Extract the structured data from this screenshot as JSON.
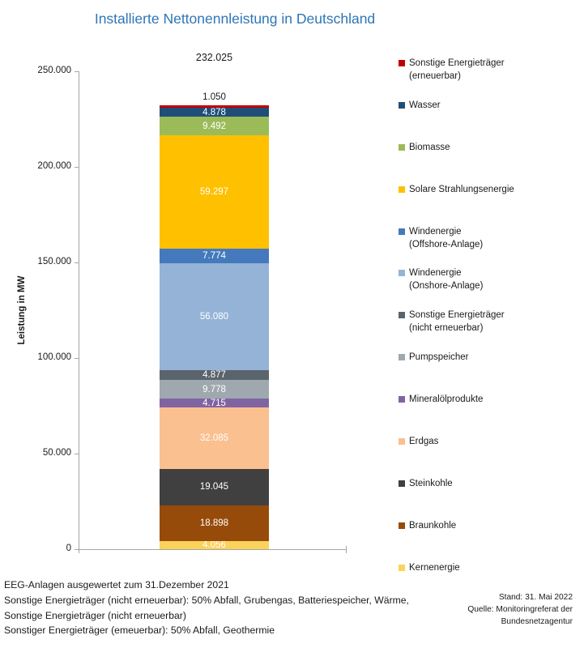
{
  "title": "Installierte Nettonennleistung in Deutschland",
  "chart_data": {
    "type": "bar",
    "stacked": true,
    "title": "Installierte Nettonennleistung in Deutschland",
    "ylabel": "Leistung in MW",
    "ylim": [
      0,
      250000
    ],
    "grid": false,
    "legend_position": "right",
    "total_value": 232025,
    "total_label": "232.025",
    "axis_color": "#A6A6A6",
    "title_color": "#2E75B6",
    "yticks": [
      {
        "value": 250000,
        "label": "250.000"
      },
      {
        "value": 200000,
        "label": "200.000"
      },
      {
        "value": 150000,
        "label": "150.000"
      },
      {
        "value": 100000,
        "label": "100.000"
      },
      {
        "value": 50000,
        "label": "50.000"
      },
      {
        "value": 0,
        "label": "0"
      }
    ],
    "segments": [
      {
        "id": "kernenergie",
        "name": "Kernenergie",
        "value": 4056,
        "label": "4.056",
        "color": "#FBD25A"
      },
      {
        "id": "braunkohle",
        "name": "Braunkohle",
        "value": 18898,
        "label": "18.898",
        "color": "#964B0B"
      },
      {
        "id": "steinkohle",
        "name": "Steinkohle",
        "value": 19045,
        "label": "19.045",
        "color": "#404040"
      },
      {
        "id": "erdgas",
        "name": "Erdgas",
        "value": 32085,
        "label": "32.085",
        "color": "#FAC090"
      },
      {
        "id": "mineraloelprodukte",
        "name": "Mineralölprodukte",
        "value": 4715,
        "label": "4.715",
        "color": "#8064A2"
      },
      {
        "id": "pumpspeicher",
        "name": "Pumpspeicher",
        "value": 9778,
        "label": "9.778",
        "color": "#9EA8AE"
      },
      {
        "id": "sonstige-nicht-erneuerbar",
        "name": "Sonstige Energieträger (nicht erneuerbar)",
        "value": 4877,
        "label": "4.877",
        "color": "#5A646C"
      },
      {
        "id": "wind-onshore",
        "name": "Windenergie (Onshore-Anlage)",
        "value": 56080,
        "label": "56.080",
        "color": "#95B3D7"
      },
      {
        "id": "wind-offshore",
        "name": "Windenergie (Offshore-Anlage)",
        "value": 7774,
        "label": "7.774",
        "color": "#4479BD"
      },
      {
        "id": "solare-strahlungsenergie",
        "name": "Solare Strahlungsenergie",
        "value": 59297,
        "label": "59.297",
        "color": "#FFC000"
      },
      {
        "id": "biomasse",
        "name": "Biomasse",
        "value": 9492,
        "label": "9.492",
        "color": "#9BBB59"
      },
      {
        "id": "wasser",
        "name": "Wasser",
        "value": 4878,
        "label": "4.878",
        "color": "#1F4E79"
      },
      {
        "id": "sonstige-erneuerbar",
        "name": "Sonstige Energieträger (erneuerbar)",
        "value": 1050,
        "label": "1.050",
        "color": "#C00000",
        "label_outside": true
      }
    ],
    "legend": [
      {
        "color": "#C00000",
        "lines": [
          "Sonstige Energieträger",
          "(erneuerbar)"
        ]
      },
      {
        "color": "#1F4E79",
        "lines": [
          "Wasser"
        ]
      },
      {
        "color": "#9BBB59",
        "lines": [
          "Biomasse"
        ]
      },
      {
        "color": "#FFC000",
        "lines": [
          "Solare Strahlungsenergie"
        ]
      },
      {
        "color": "#4479BD",
        "lines": [
          "Windenergie",
          "(Offshore-Anlage)"
        ]
      },
      {
        "color": "#95B3D7",
        "lines": [
          "Windenergie",
          "(Onshore-Anlage)"
        ]
      },
      {
        "color": "#5A646C",
        "lines": [
          "Sonstige Energieträger",
          "(nicht erneuerbar)"
        ]
      },
      {
        "color": "#9EA8AE",
        "lines": [
          "Pumpspeicher"
        ]
      },
      {
        "color": "#8064A2",
        "lines": [
          "Mineralölprodukte"
        ]
      },
      {
        "color": "#FAC090",
        "lines": [
          "Erdgas"
        ]
      },
      {
        "color": "#404040",
        "lines": [
          "Steinkohle"
        ]
      },
      {
        "color": "#964B0B",
        "lines": [
          "Braunkohle"
        ]
      },
      {
        "color": "#FBD25A",
        "lines": [
          "Kernenergie"
        ]
      }
    ]
  },
  "footnotes": [
    "EEG-Anlagen ausgewertet zum 31.Dezember 2021",
    "Sonstige Energieträger (nicht erneuerbar): 50% Abfall, Grubengas, Batteriespeicher, Wärme,",
    "Sonstige Energieträger (nicht erneuerbar)",
    "Sonstiger Energieträger (emeuerbar): 50% Abfall, Geothermie"
  ],
  "source": {
    "lines": [
      "Stand: 31. Mai 2022",
      "Quelle: Monitoringreferat der",
      "Bundesnetzagentur"
    ]
  }
}
